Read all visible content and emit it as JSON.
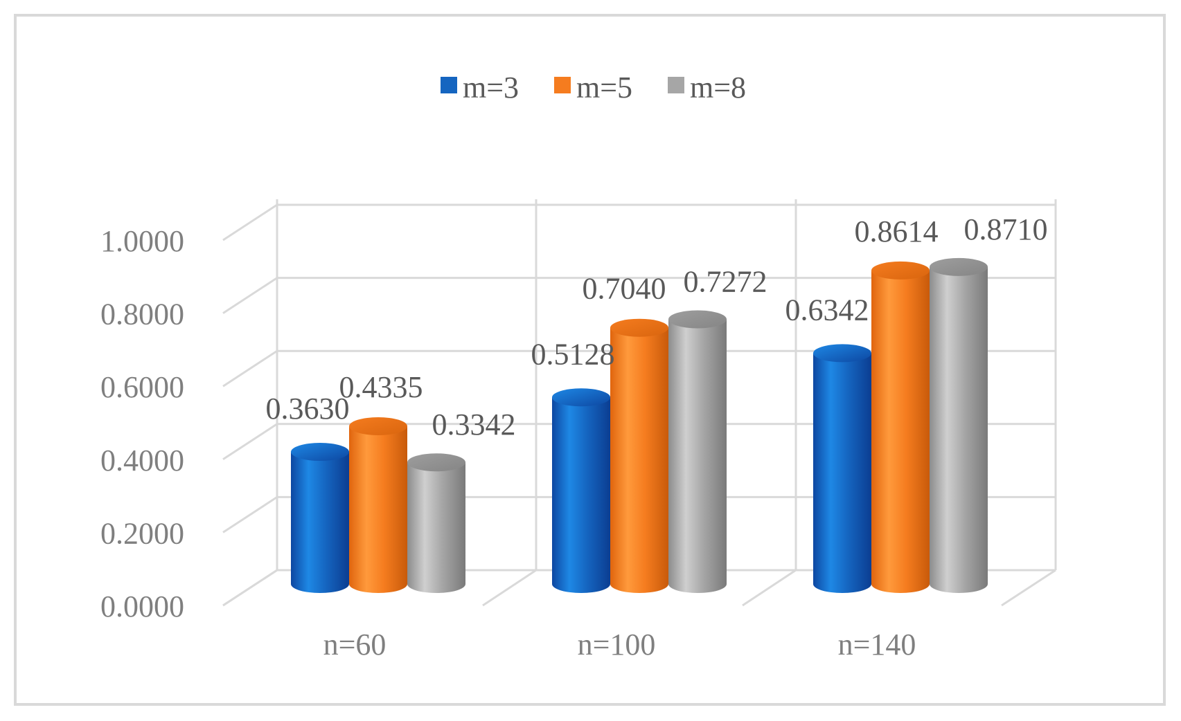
{
  "chart_data": {
    "type": "bar",
    "style": "3d-cylinder",
    "categories": [
      "n=60",
      "n=100",
      "n=140"
    ],
    "series": [
      {
        "name": "m=3",
        "color": "#1565c0",
        "values": [
          0.363,
          0.5128,
          0.6342
        ],
        "labels": [
          "0.3630",
          "0.5128",
          "0.6342"
        ]
      },
      {
        "name": "m=5",
        "color": "#f57c1f",
        "values": [
          0.4335,
          0.704,
          0.8614
        ],
        "labels": [
          "0.4335",
          "0.7040",
          "0.8614"
        ]
      },
      {
        "name": "m=8",
        "color": "#a6a6a6",
        "values": [
          0.3342,
          0.7272,
          0.871
        ],
        "labels": [
          "0.3342",
          "0.7272",
          "0.8710"
        ]
      }
    ],
    "yticks": [
      "0.0000",
      "0.2000",
      "0.4000",
      "0.6000",
      "0.8000",
      "1.0000"
    ],
    "ylim": [
      0,
      1.0
    ],
    "legend": "top-center",
    "grid": true,
    "title": "",
    "xlabel": "",
    "ylabel": ""
  }
}
